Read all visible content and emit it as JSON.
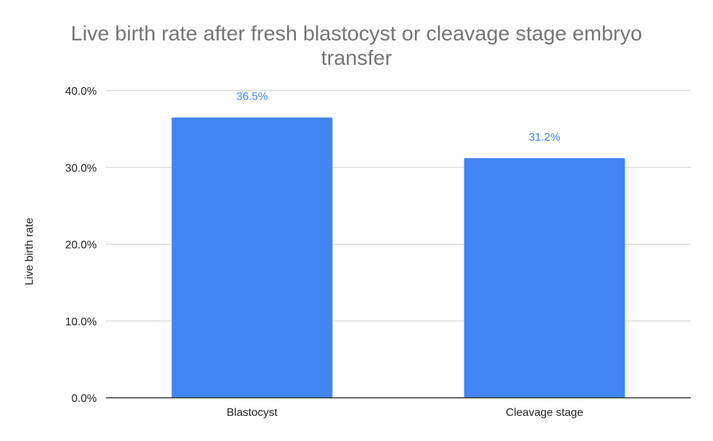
{
  "chart_data": {
    "type": "bar",
    "title_lines": [
      "Live birth rate after fresh blastocyst or cleavage stage embryo",
      "transfer"
    ],
    "ylabel": "Live birth rate",
    "xlabel": "",
    "categories": [
      "Blastocyst",
      "Cleavage stage"
    ],
    "values": [
      36.5,
      31.2
    ],
    "data_labels": [
      "36.5%",
      "31.2%"
    ],
    "ylim": [
      0,
      40
    ],
    "yticks": [
      0,
      10,
      20,
      30,
      40
    ],
    "ytick_labels": [
      "0.0%",
      "10.0%",
      "20.0%",
      "30.0%",
      "40.0%"
    ],
    "grid": true,
    "legend": "none",
    "colors": {
      "bar": "#4285f4",
      "data_label": "#4285f4",
      "grid": "#cccccc",
      "axis": "#333333",
      "title": "#757575"
    }
  }
}
